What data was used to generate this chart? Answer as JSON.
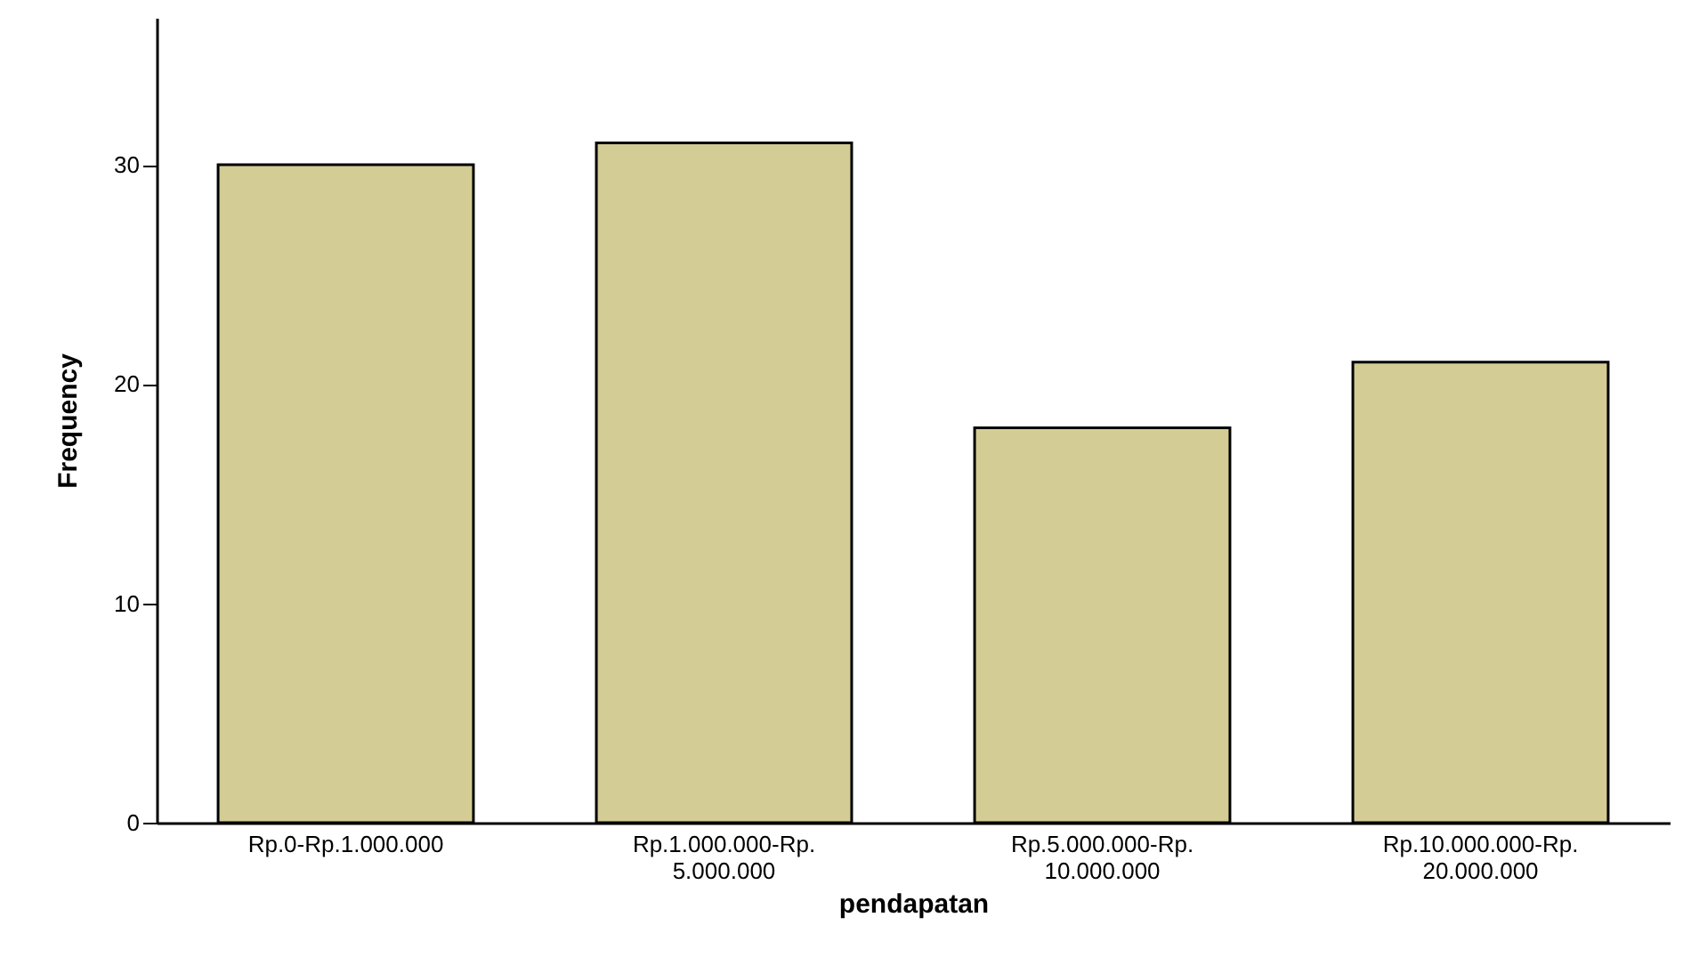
{
  "chart_data": {
    "type": "bar",
    "xlabel": "pendapatan",
    "ylabel": "Frequency",
    "categories": [
      "Rp.0-Rp.1.000.000",
      "Rp.1.000.000-Rp. 5.000.000",
      "Rp.5.000.000-Rp. 10.000.000",
      "Rp.10.000.000-Rp. 20.000.000"
    ],
    "values": [
      30,
      31,
      18,
      21
    ],
    "color": "#d3cc94",
    "ylim": [
      0,
      36.7
    ],
    "yticks": [
      0,
      10,
      20,
      30
    ],
    "grid": false
  }
}
